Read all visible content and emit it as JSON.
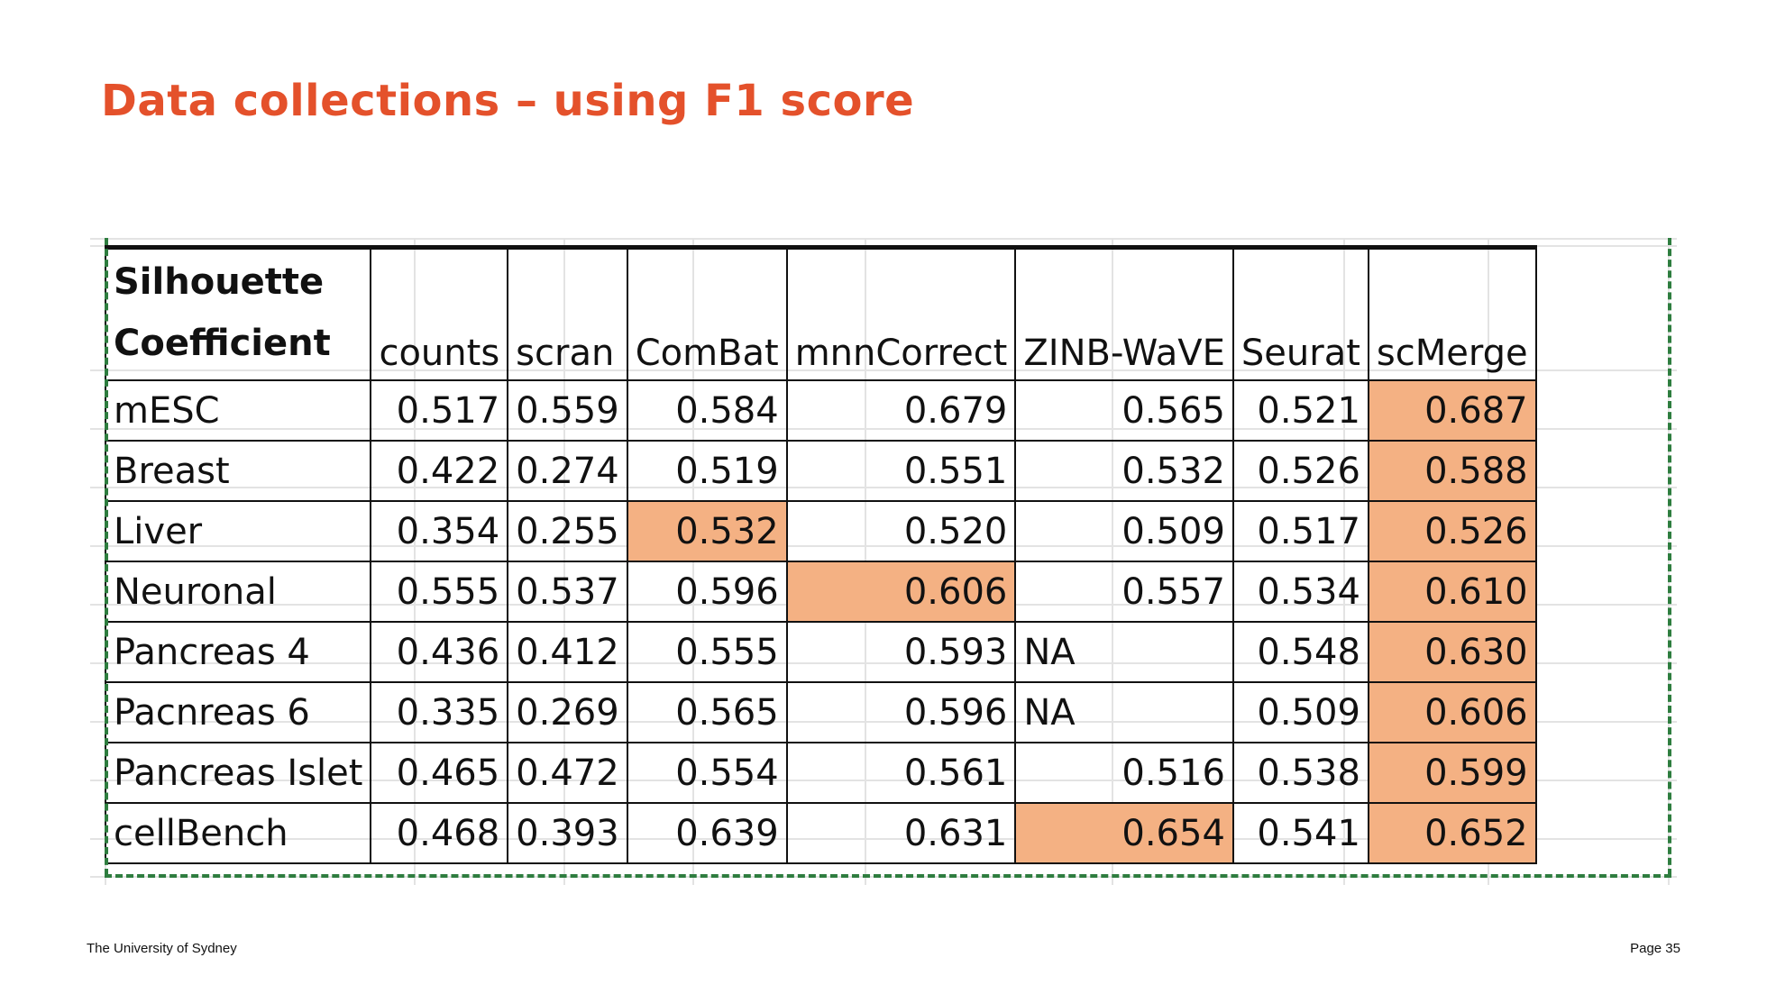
{
  "slide": {
    "title": "Data collections – using F1 score",
    "footer_left": "The University of Sydney",
    "footer_right": "Page 35"
  },
  "table": {
    "corner_line1": "Silhouette",
    "corner_line2": "Coefficient",
    "columns": [
      "counts",
      "scran",
      "ComBat",
      "mnnCorrect",
      "ZINB-WaVE",
      "Seurat",
      "scMerge"
    ],
    "rows": [
      {
        "name": "mESC",
        "values": [
          "0.517",
          "0.559",
          "0.584",
          "0.679",
          "0.565",
          "0.521",
          "0.687"
        ],
        "highlight": [
          6
        ]
      },
      {
        "name": "Breast",
        "values": [
          "0.422",
          "0.274",
          "0.519",
          "0.551",
          "0.532",
          "0.526",
          "0.588"
        ],
        "highlight": [
          6
        ]
      },
      {
        "name": "Liver",
        "values": [
          "0.354",
          "0.255",
          "0.532",
          "0.520",
          "0.509",
          "0.517",
          "0.526"
        ],
        "highlight": [
          2,
          6
        ]
      },
      {
        "name": "Neuronal",
        "values": [
          "0.555",
          "0.537",
          "0.596",
          "0.606",
          "0.557",
          "0.534",
          "0.610"
        ],
        "highlight": [
          3,
          6
        ]
      },
      {
        "name": "Pancreas 4",
        "values": [
          "0.436",
          "0.412",
          "0.555",
          "0.593",
          "NA",
          "0.548",
          "0.630"
        ],
        "highlight": [
          6
        ]
      },
      {
        "name": "Pacnreas 6",
        "values": [
          "0.335",
          "0.269",
          "0.565",
          "0.596",
          "NA",
          "0.509",
          "0.606"
        ],
        "highlight": [
          6
        ]
      },
      {
        "name": "Pancreas Islet",
        "values": [
          "0.465",
          "0.472",
          "0.554",
          "0.561",
          "0.516",
          "0.538",
          "0.599"
        ],
        "highlight": [
          6
        ]
      },
      {
        "name": "cellBench",
        "values": [
          "0.468",
          "0.393",
          "0.639",
          "0.631",
          "0.654",
          "0.541",
          "0.652"
        ],
        "highlight": [
          4,
          6
        ]
      }
    ],
    "highlight_color": "#f4b183"
  },
  "colors": {
    "title": "#e4512b",
    "dashed_border": "#2e7d3f"
  }
}
